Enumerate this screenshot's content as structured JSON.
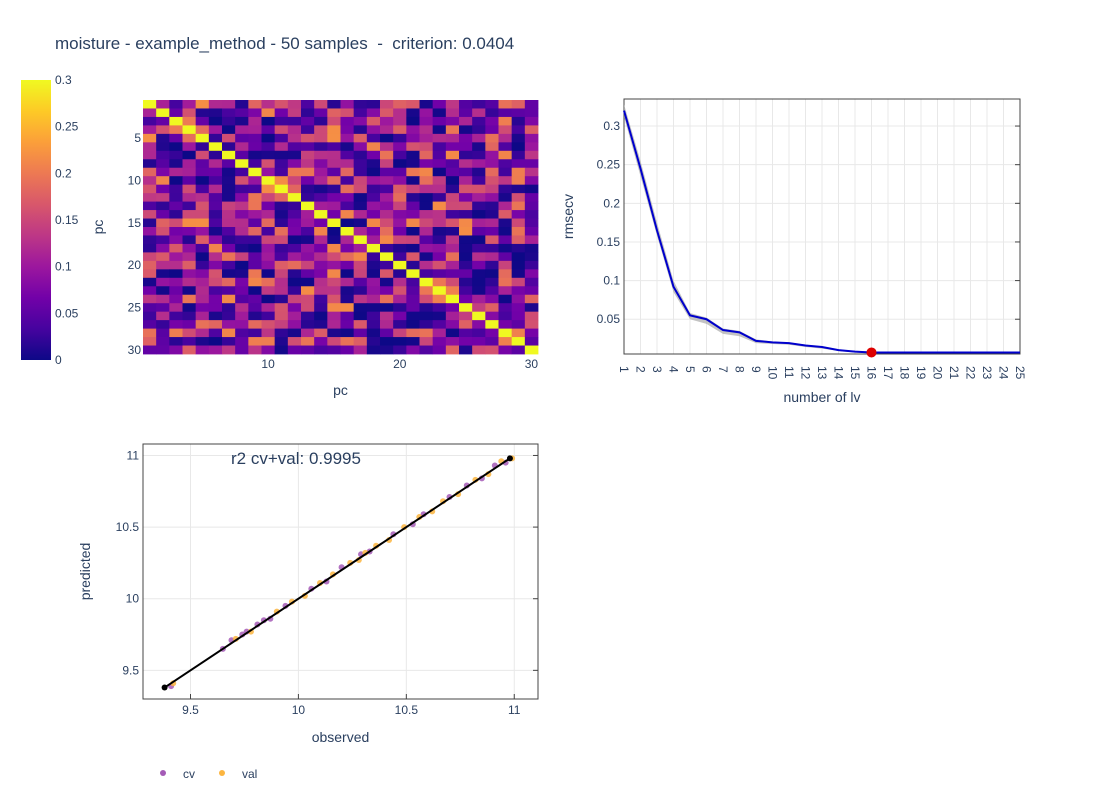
{
  "title": "moisture - example_method - 50 samples  -  criterion: 0.0404",
  "colorscale": [
    "#0d0887",
    "#46039f",
    "#7201a8",
    "#9c179e",
    "#bd3786",
    "#d8576b",
    "#ed7953",
    "#fb9f3a",
    "#fdca26",
    "#f0f921"
  ],
  "chart_data": [
    {
      "type": "heatmap",
      "xlabel": "pc",
      "ylabel": "pc",
      "x_ticks": [
        10,
        20,
        30
      ],
      "y_ticks": [
        5,
        10,
        15,
        20,
        25,
        30
      ],
      "size": 30,
      "zmin": 0,
      "zmax": 0.3,
      "colorbar_ticks": [
        0,
        0.05,
        0.1,
        0.15,
        0.2,
        0.25,
        0.3
      ],
      "diagonal_value": 0.3,
      "offdiag_range": [
        0,
        0.22
      ]
    },
    {
      "type": "line",
      "xlabel": "number of lv",
      "ylabel": "rmsecv",
      "x": [
        1,
        2,
        3,
        4,
        5,
        6,
        7,
        8,
        9,
        10,
        11,
        12,
        13,
        14,
        15,
        16,
        17,
        18,
        19,
        20,
        21,
        22,
        23,
        24,
        25
      ],
      "series": [
        {
          "values": [
            0.32,
            0.245,
            0.165,
            0.092,
            0.055,
            0.05,
            0.036,
            0.033,
            0.022,
            0.02,
            0.019,
            0.016,
            0.014,
            0.01,
            0.008,
            0.007,
            0.007,
            0.007,
            0.007,
            0.007,
            0.007,
            0.007,
            0.007,
            0.007,
            0.007
          ],
          "color": "#0000cc"
        }
      ],
      "band": {
        "upper": [
          0.328,
          0.255,
          0.175,
          0.1,
          0.058,
          0.052,
          0.038,
          0.035,
          0.024,
          0.021,
          0.02,
          0.017,
          0.015,
          0.011,
          0.009,
          0.008,
          0.008,
          0.008,
          0.008,
          0.008,
          0.008,
          0.008,
          0.008,
          0.008,
          0.008
        ],
        "lower": [
          0.312,
          0.235,
          0.158,
          0.085,
          0.05,
          0.044,
          0.031,
          0.028,
          0.019,
          0.018,
          0.017,
          0.014,
          0.012,
          0.009,
          0.007,
          0.006,
          0.006,
          0.006,
          0.006,
          0.006,
          0.006,
          0.006,
          0.006,
          0.006,
          0.006
        ],
        "color": "#aaaaaa"
      },
      "selected": {
        "x": 16,
        "y": 0.007,
        "color": "#dd0000"
      },
      "y_ticks": [
        0.05,
        0.1,
        0.15,
        0.2,
        0.25,
        0.3
      ],
      "ylim": [
        0.005,
        0.335
      ],
      "grid": true
    },
    {
      "type": "scatter",
      "xlabel": "observed",
      "ylabel": "predicted",
      "annotation": "r2 cv+val: 0.9995",
      "xlim": [
        9.28,
        11.11
      ],
      "ylim": [
        9.3,
        11.08
      ],
      "x_ticks": [
        9.5,
        10,
        10.5,
        11
      ],
      "y_ticks": [
        9.5,
        10,
        10.5,
        11
      ],
      "series": [
        {
          "name": "cv",
          "color": "#a45bb6",
          "x": [
            9.41,
            9.65,
            9.69,
            9.74,
            9.76,
            9.81,
            9.84,
            9.87,
            9.94,
            10.06,
            10.13,
            10.2,
            10.29,
            10.33,
            10.44,
            10.53,
            10.58,
            10.7,
            10.78,
            10.85,
            10.91,
            10.96
          ],
          "y": [
            9.39,
            9.65,
            9.71,
            9.75,
            9.77,
            9.82,
            9.85,
            9.86,
            9.95,
            10.07,
            10.12,
            10.22,
            10.31,
            10.33,
            10.45,
            10.52,
            10.59,
            10.71,
            10.79,
            10.84,
            10.93,
            10.95
          ]
        },
        {
          "name": "val",
          "color": "#fcb540",
          "x": [
            9.42,
            9.71,
            9.78,
            9.9,
            9.97,
            10.03,
            10.1,
            10.16,
            10.24,
            10.28,
            10.31,
            10.36,
            10.42,
            10.49,
            10.56,
            10.62,
            10.67,
            10.74,
            10.82,
            10.88,
            10.94,
            10.99
          ],
          "y": [
            9.41,
            9.72,
            9.77,
            9.91,
            9.98,
            10.02,
            10.11,
            10.17,
            10.25,
            10.27,
            10.32,
            10.37,
            10.41,
            10.5,
            10.57,
            10.61,
            10.68,
            10.73,
            10.83,
            10.87,
            10.96,
            10.98
          ]
        }
      ],
      "fit_line": {
        "x": [
          9.38,
          10.98
        ],
        "y": [
          9.38,
          10.98
        ],
        "color": "#000000"
      },
      "legend": {
        "position": "bottom-left",
        "entries": [
          "cv",
          "val"
        ]
      },
      "grid": true
    }
  ]
}
